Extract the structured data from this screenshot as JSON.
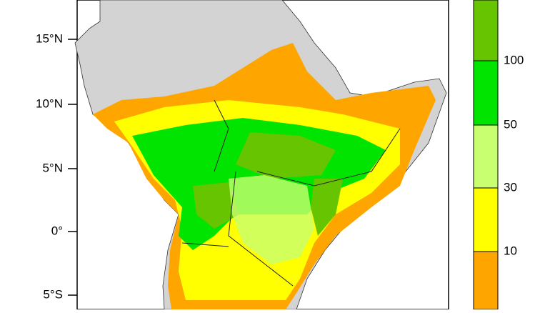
{
  "map": {
    "lat_labels": [
      "15°N",
      "10°N",
      "5°N",
      "0°",
      "5°S"
    ],
    "colorbar": {
      "labels": [
        "100",
        "50",
        "30",
        "10"
      ],
      "colors": [
        "#66c400",
        "#00e400",
        "#c8ff70",
        "#ffff00",
        "#ffa500"
      ]
    }
  }
}
